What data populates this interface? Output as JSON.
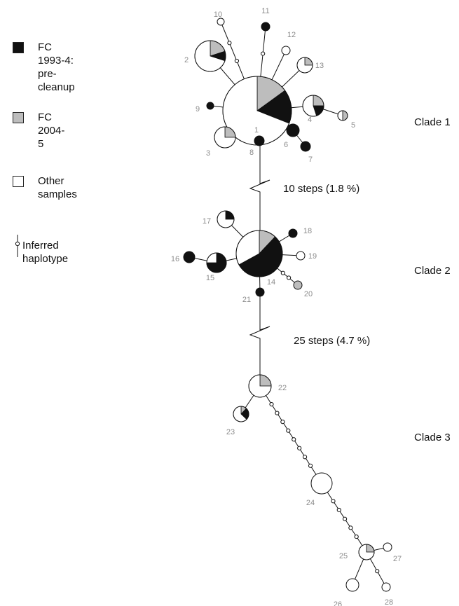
{
  "legend": {
    "items": [
      {
        "key": "fc1993",
        "label": "FC 1993-4:\npre-cleanup",
        "color": "#111111"
      },
      {
        "key": "fc2004",
        "label": "FC 2004-5",
        "color": "#bdbdbd"
      },
      {
        "key": "other",
        "label": "Other samples",
        "color": "#ffffff"
      },
      {
        "key": "inferred",
        "label": "Inferred haplotype",
        "color": "#ffffff"
      }
    ]
  },
  "clades": [
    {
      "label": "Clade 1"
    },
    {
      "label": "Clade 2"
    },
    {
      "label": "Clade 3"
    }
  ],
  "gaps": [
    {
      "label": "10 steps  (1.8 %)"
    },
    {
      "label": "25 steps  (4.7 %)"
    }
  ],
  "haplotypes": [
    {
      "id": "1",
      "fractions": {
        "fc1993": 0.16,
        "fc2004": 0.15,
        "other": 0.69
      }
    },
    {
      "id": "2",
      "fractions": {
        "fc1993": 0.1,
        "fc2004": 0.2,
        "other": 0.7
      }
    },
    {
      "id": "3",
      "fractions": {
        "fc1993": 0.0,
        "fc2004": 0.25,
        "other": 0.75
      }
    },
    {
      "id": "4",
      "fractions": {
        "fc1993": 0.2,
        "fc2004": 0.25,
        "other": 0.55
      }
    },
    {
      "id": "5",
      "fractions": {
        "fc1993": 0.0,
        "fc2004": 0.5,
        "other": 0.5
      }
    },
    {
      "id": "6",
      "fractions": {
        "fc1993": 1.0,
        "fc2004": 0.0,
        "other": 0.0
      }
    },
    {
      "id": "7",
      "fractions": {
        "fc1993": 1.0,
        "fc2004": 0.0,
        "other": 0.0
      }
    },
    {
      "id": "8",
      "fractions": {
        "fc1993": 1.0,
        "fc2004": 0.0,
        "other": 0.0
      }
    },
    {
      "id": "9",
      "fractions": {
        "fc1993": 1.0,
        "fc2004": 0.0,
        "other": 0.0
      }
    },
    {
      "id": "10",
      "fractions": {
        "fc1993": 0.0,
        "fc2004": 0.0,
        "other": 1.0
      }
    },
    {
      "id": "11",
      "fractions": {
        "fc1993": 1.0,
        "fc2004": 0.0,
        "other": 0.0
      }
    },
    {
      "id": "12",
      "fractions": {
        "fc1993": 0.0,
        "fc2004": 0.0,
        "other": 1.0
      }
    },
    {
      "id": "13",
      "fractions": {
        "fc1993": 0.0,
        "fc2004": 0.25,
        "other": 0.75
      }
    },
    {
      "id": "14",
      "fractions": {
        "fc1993": 0.55,
        "fc2004": 0.12,
        "other": 0.33
      }
    },
    {
      "id": "15",
      "fractions": {
        "fc1993": 0.75,
        "fc2004": 0.0,
        "other": 0.25
      }
    },
    {
      "id": "16",
      "fractions": {
        "fc1993": 1.0,
        "fc2004": 0.0,
        "other": 0.0
      }
    },
    {
      "id": "17",
      "fractions": {
        "fc1993": 0.25,
        "fc2004": 0.0,
        "other": 0.75
      }
    },
    {
      "id": "18",
      "fractions": {
        "fc1993": 1.0,
        "fc2004": 0.0,
        "other": 0.0
      }
    },
    {
      "id": "19",
      "fractions": {
        "fc1993": 0.0,
        "fc2004": 0.0,
        "other": 1.0
      }
    },
    {
      "id": "20",
      "fractions": {
        "fc1993": 0.0,
        "fc2004": 1.0,
        "other": 0.0
      }
    },
    {
      "id": "21",
      "fractions": {
        "fc1993": 1.0,
        "fc2004": 0.0,
        "other": 0.0
      }
    },
    {
      "id": "22",
      "fractions": {
        "fc1993": 0.0,
        "fc2004": 0.25,
        "other": 0.75
      }
    },
    {
      "id": "23",
      "fractions": {
        "fc1993": 0.25,
        "fc2004": 0.12,
        "other": 0.63
      }
    },
    {
      "id": "24",
      "fractions": {
        "fc1993": 0.0,
        "fc2004": 0.0,
        "other": 1.0
      }
    },
    {
      "id": "25",
      "fractions": {
        "fc1993": 0.0,
        "fc2004": 0.25,
        "other": 0.75
      }
    },
    {
      "id": "26",
      "fractions": {
        "fc1993": 0.0,
        "fc2004": 0.0,
        "other": 1.0
      }
    },
    {
      "id": "27",
      "fractions": {
        "fc1993": 0.0,
        "fc2004": 0.0,
        "other": 1.0
      }
    },
    {
      "id": "28",
      "fractions": {
        "fc1993": 0.0,
        "fc2004": 0.0,
        "other": 1.0
      }
    }
  ]
}
